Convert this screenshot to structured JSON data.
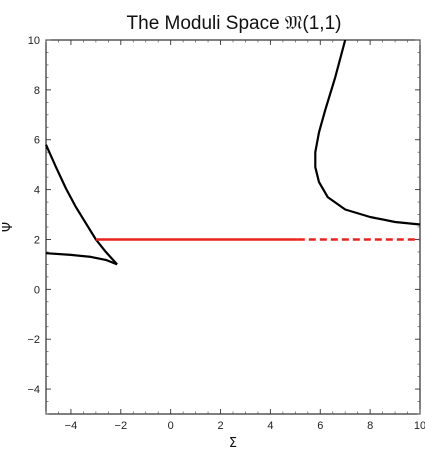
{
  "chart_data": {
    "type": "line",
    "title": "The Moduli Space 𝔐(1,1)",
    "xlabel": "Σ",
    "ylabel": "Ψ",
    "xlim": [
      -5,
      10
    ],
    "ylim": [
      -5,
      10
    ],
    "x_ticks": [
      -4,
      -2,
      0,
      2,
      4,
      6,
      8,
      10
    ],
    "y_ticks": [
      -4,
      -2,
      0,
      2,
      4,
      6,
      8,
      10
    ],
    "x_tick_labels": [
      "−4",
      "−2",
      "0",
      "2",
      "4",
      "6",
      "8",
      "10"
    ],
    "y_tick_labels": [
      "−4",
      "−2",
      "0",
      "2",
      "4",
      "6",
      "8",
      "10"
    ],
    "grid": false,
    "series": [
      {
        "color": "#000000",
        "style": "solid",
        "points": [
          [
            -5.0,
            5.8
          ],
          [
            -4.6,
            4.9
          ],
          [
            -4.2,
            4.05
          ],
          [
            -3.8,
            3.3
          ],
          [
            -3.4,
            2.65
          ],
          [
            -3.0,
            2.0
          ],
          [
            -2.6,
            1.5
          ],
          [
            -2.15,
            1.0
          ]
        ]
      },
      {
        "color": "#000000",
        "style": "solid",
        "points": [
          [
            -5.0,
            1.45
          ],
          [
            -4.0,
            1.38
          ],
          [
            -3.2,
            1.3
          ],
          [
            -2.6,
            1.18
          ],
          [
            -2.15,
            1.0
          ]
        ]
      },
      {
        "color": "#000000",
        "style": "solid",
        "points": [
          [
            7.0,
            10.0
          ],
          [
            6.6,
            8.5
          ],
          [
            6.2,
            7.2
          ],
          [
            5.95,
            6.3
          ],
          [
            5.8,
            5.5
          ],
          [
            5.8,
            4.9
          ],
          [
            5.95,
            4.3
          ],
          [
            6.3,
            3.7
          ],
          [
            7.0,
            3.2
          ],
          [
            8.0,
            2.9
          ],
          [
            9.0,
            2.7
          ],
          [
            10.0,
            2.6
          ]
        ]
      },
      {
        "color": "#e8231e",
        "style": "solid",
        "points": [
          [
            -3.0,
            2.0
          ],
          [
            5.1,
            2.0
          ]
        ]
      },
      {
        "color": "#e8231e",
        "style": "dashed",
        "points": [
          [
            5.1,
            2.0
          ],
          [
            10.0,
            2.0
          ]
        ]
      }
    ]
  }
}
